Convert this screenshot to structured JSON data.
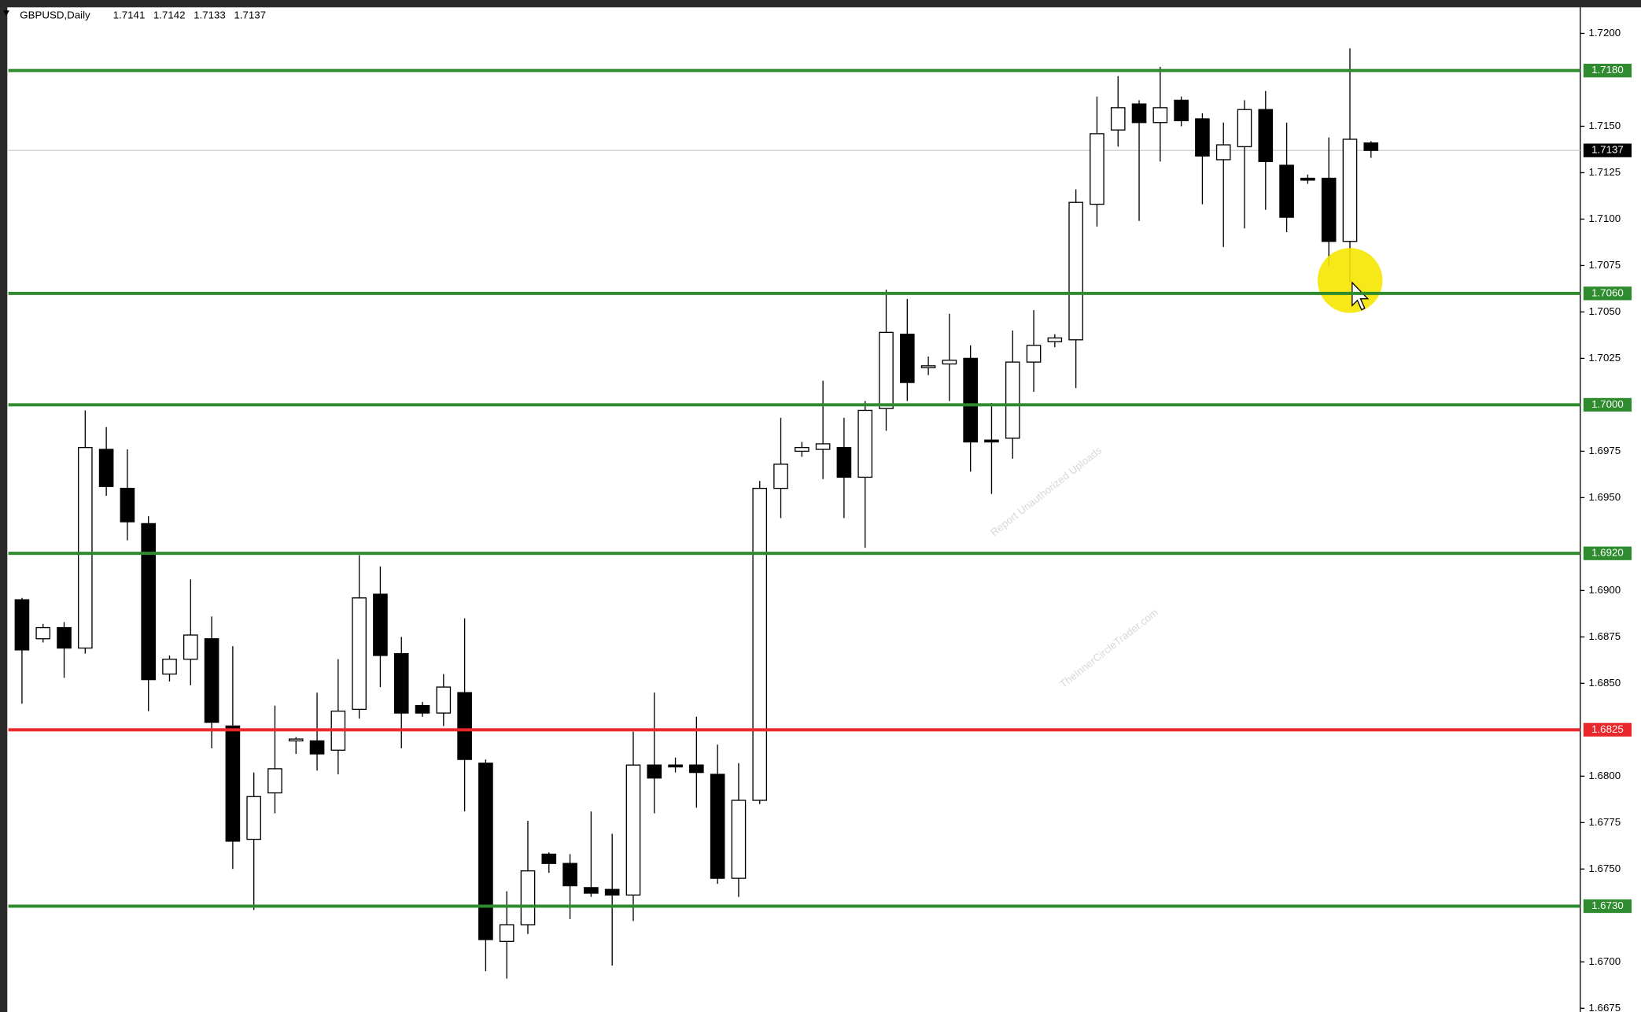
{
  "chart_data": {
    "type": "candlestick",
    "symbol": "GBPUSD,Daily",
    "open": [
      1.6895,
      1.6874,
      1.688,
      1.6869,
      1.6976,
      1.6955,
      1.6936,
      1.6855,
      1.6863,
      1.6874,
      1.6827,
      1.6766,
      1.6791,
      1.6819,
      1.6819,
      1.6814,
      1.6836,
      1.6898,
      1.6866,
      1.6838,
      1.6834,
      1.6845,
      1.6807,
      1.6711,
      1.672,
      1.6758,
      1.6753,
      1.674,
      1.6739,
      1.6736,
      1.6806,
      1.6806,
      1.6806,
      1.6801,
      1.6745,
      1.6787,
      1.6955,
      1.6975,
      1.6976,
      1.6977,
      1.6961,
      1.6998,
      1.7038,
      1.702,
      1.7022,
      1.7025,
      1.6981,
      1.6982,
      1.7023,
      1.7034,
      1.7035,
      1.7108,
      1.7148,
      1.7162,
      1.7152,
      1.7164,
      1.7154,
      1.7132,
      1.7139,
      1.7159,
      1.7129,
      1.7122,
      1.7122,
      1.7088,
      1.7141
    ],
    "high": [
      1.6896,
      1.6882,
      1.6883,
      1.6997,
      1.6988,
      1.6976,
      1.694,
      1.6865,
      1.6906,
      1.6886,
      1.687,
      1.6802,
      1.6838,
      1.6821,
      1.6845,
      1.6863,
      1.6919,
      1.6913,
      1.6875,
      1.684,
      1.6855,
      1.6885,
      1.6809,
      1.6738,
      1.6776,
      1.6759,
      1.6758,
      1.6781,
      1.6769,
      1.6824,
      1.6845,
      1.681,
      1.6832,
      1.6817,
      1.6807,
      1.6959,
      1.6993,
      1.698,
      1.7013,
      1.6993,
      1.7002,
      1.7062,
      1.7057,
      1.7026,
      1.7049,
      1.7032,
      1.7001,
      1.704,
      1.7051,
      1.7038,
      1.7116,
      1.7166,
      1.7177,
      1.7164,
      1.7182,
      1.7166,
      1.7157,
      1.7152,
      1.7164,
      1.7169,
      1.7152,
      1.7124,
      1.7144,
      1.7192,
      1.7142
    ],
    "low": [
      1.6839,
      1.6872,
      1.6853,
      1.6866,
      1.6951,
      1.6927,
      1.6835,
      1.6851,
      1.6849,
      1.6815,
      1.675,
      1.6728,
      1.678,
      1.6812,
      1.6803,
      1.6801,
      1.6831,
      1.6848,
      1.6815,
      1.6832,
      1.6827,
      1.6781,
      1.6695,
      1.6691,
      1.6715,
      1.6748,
      1.6723,
      1.6735,
      1.6698,
      1.6722,
      1.678,
      1.6802,
      1.6783,
      1.6742,
      1.6735,
      1.6785,
      1.6939,
      1.6972,
      1.696,
      1.6939,
      1.6923,
      1.6986,
      1.7002,
      1.7016,
      1.7002,
      1.6964,
      1.6952,
      1.6971,
      1.7007,
      1.7031,
      1.7009,
      1.7096,
      1.7139,
      1.7099,
      1.7131,
      1.715,
      1.7108,
      1.7085,
      1.7095,
      1.7105,
      1.7093,
      1.7119,
      1.7075,
      1.7066,
      1.7133
    ],
    "close": [
      1.6868,
      1.688,
      1.6869,
      1.6977,
      1.6956,
      1.6937,
      1.6852,
      1.6863,
      1.6876,
      1.6829,
      1.6765,
      1.6789,
      1.6804,
      1.682,
      1.6812,
      1.6835,
      1.6896,
      1.6865,
      1.6834,
      1.6834,
      1.6848,
      1.6809,
      1.6712,
      1.672,
      1.6749,
      1.6753,
      1.6741,
      1.6737,
      1.6736,
      1.6806,
      1.6799,
      1.6805,
      1.6802,
      1.6745,
      1.6787,
      1.6955,
      1.6968,
      1.6977,
      1.6979,
      1.6961,
      1.6997,
      1.7039,
      1.7012,
      1.7021,
      1.7024,
      1.698,
      1.698,
      1.7023,
      1.7032,
      1.7036,
      1.7109,
      1.7146,
      1.716,
      1.7152,
      1.716,
      1.7153,
      1.7134,
      1.714,
      1.7159,
      1.7131,
      1.7101,
      1.7121,
      1.7088,
      1.7143,
      1.7137
    ],
    "bull_color": "#ffffff",
    "bear_color": "#000000",
    "ylim": [
      1.6673,
      1.7218
    ],
    "yticks": [
      {
        "value": 1.72,
        "label": "1.7200"
      },
      {
        "value": 1.715,
        "label": "1.7150"
      },
      {
        "value": 1.7125,
        "label": "1.7125"
      },
      {
        "value": 1.71,
        "label": "1.7100"
      },
      {
        "value": 1.7075,
        "label": "1.7075"
      },
      {
        "value": 1.705,
        "label": "1.7050"
      },
      {
        "value": 1.7025,
        "label": "1.7025"
      },
      {
        "value": 1.6975,
        "label": "1.6975"
      },
      {
        "value": 1.695,
        "label": "1.6950"
      },
      {
        "value": 1.69,
        "label": "1.6900"
      },
      {
        "value": 1.6875,
        "label": "1.6875"
      },
      {
        "value": 1.685,
        "label": "1.6850"
      },
      {
        "value": 1.68,
        "label": "1.6800"
      },
      {
        "value": 1.6775,
        "label": "1.6775"
      },
      {
        "value": 1.675,
        "label": "1.6750"
      },
      {
        "value": 1.67,
        "label": "1.6700"
      },
      {
        "value": 1.6675,
        "label": "1.6675"
      }
    ],
    "levels": [
      {
        "value": 1.718,
        "label": "1.7180",
        "color": "#2e8b2e"
      },
      {
        "value": 1.706,
        "label": "1.7060",
        "color": "#2e8b2e"
      },
      {
        "value": 1.7,
        "label": "1.7000",
        "color": "#2e8b2e"
      },
      {
        "value": 1.692,
        "label": "1.6920",
        "color": "#2e8b2e"
      },
      {
        "value": 1.6825,
        "label": "1.6825",
        "color": "#e8282a"
      },
      {
        "value": 1.673,
        "label": "1.6730",
        "color": "#2e8b2e"
      }
    ],
    "current_price": {
      "value": 1.7137,
      "label": "1.7137"
    },
    "watermark": [
      "Report Unauthorized Uploads",
      "TheInnerCircleTrader.com"
    ]
  }
}
